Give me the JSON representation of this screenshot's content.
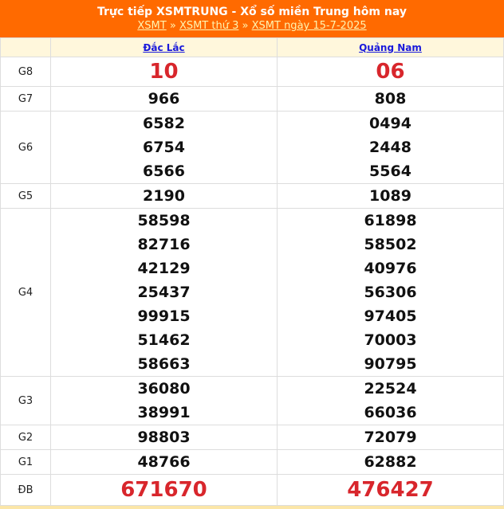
{
  "header": {
    "title": "Trực tiếp XSMTRUNG - Xổ số miền Trung hôm nay",
    "breadcrumb": [
      "XSMT",
      "XSMT thứ 3",
      "XSMT ngày 15-7-2025"
    ],
    "separator": "»"
  },
  "provinces": [
    "Đắc Lắc",
    "Quảng Nam"
  ],
  "rows": [
    {
      "label": "G8",
      "cls": "g8",
      "values": [
        [
          "10"
        ],
        [
          "06"
        ]
      ]
    },
    {
      "label": "G7",
      "values": [
        [
          "966"
        ],
        [
          "808"
        ]
      ]
    },
    {
      "label": "G6",
      "values": [
        [
          "6582",
          "6754",
          "6566"
        ],
        [
          "0494",
          "2448",
          "5564"
        ]
      ]
    },
    {
      "label": "G5",
      "values": [
        [
          "2190"
        ],
        [
          "1089"
        ]
      ]
    },
    {
      "label": "G4",
      "values": [
        [
          "58598",
          "82716",
          "42129",
          "25437",
          "99915",
          "51462",
          "58663"
        ],
        [
          "61898",
          "58502",
          "40976",
          "56306",
          "97405",
          "70003",
          "90795"
        ]
      ]
    },
    {
      "label": "G3",
      "values": [
        [
          "36080",
          "38991"
        ],
        [
          "22524",
          "66036"
        ]
      ]
    },
    {
      "label": "G2",
      "values": [
        [
          "98803"
        ],
        [
          "72079"
        ]
      ]
    },
    {
      "label": "G1",
      "values": [
        [
          "48766"
        ],
        [
          "62882"
        ]
      ]
    },
    {
      "label": "ĐB",
      "cls": "db",
      "values": [
        [
          "671670"
        ],
        [
          "476427"
        ]
      ]
    }
  ],
  "colors": {
    "header": "#ff6a00",
    "prize_red": "#d8262c",
    "link": "#1a1adb"
  }
}
